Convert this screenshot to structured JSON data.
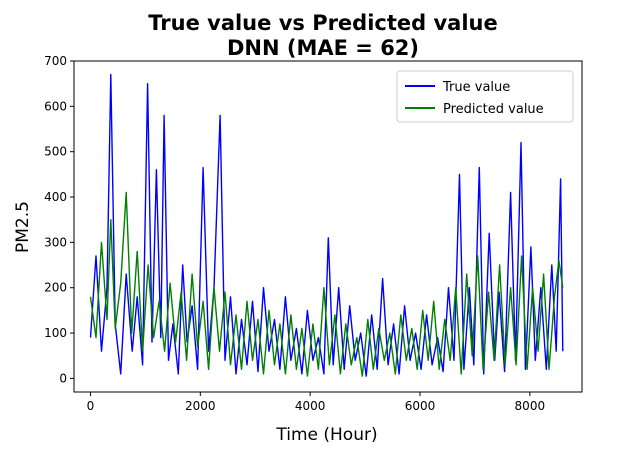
{
  "chart_data": {
    "type": "line",
    "title": "True value vs Predicted value",
    "subtitle": "DNN (MAE = 62)",
    "xlabel": "Time (Hour)",
    "ylabel": "PM2.5",
    "xlim": [
      -300,
      8950
    ],
    "ylim": [
      -30,
      700
    ],
    "x_ticks": [
      0,
      2000,
      4000,
      6000,
      8000
    ],
    "y_ticks": [
      0,
      100,
      200,
      300,
      400,
      500,
      600,
      700
    ],
    "legend_position": "top-right",
    "grid": false,
    "series": [
      {
        "name": "True value",
        "color": "#0000ff",
        "points": [
          [
            0,
            90
          ],
          [
            100,
            270
          ],
          [
            200,
            60
          ],
          [
            300,
            200
          ],
          [
            370,
            670
          ],
          [
            450,
            120
          ],
          [
            550,
            10
          ],
          [
            650,
            230
          ],
          [
            760,
            60
          ],
          [
            850,
            180
          ],
          [
            950,
            30
          ],
          [
            1040,
            650
          ],
          [
            1120,
            80
          ],
          [
            1200,
            460
          ],
          [
            1280,
            90
          ],
          [
            1340,
            580
          ],
          [
            1420,
            40
          ],
          [
            1500,
            120
          ],
          [
            1600,
            10
          ],
          [
            1680,
            250
          ],
          [
            1760,
            80
          ],
          [
            1850,
            160
          ],
          [
            1950,
            20
          ],
          [
            2050,
            465
          ],
          [
            2150,
            60
          ],
          [
            2250,
            200
          ],
          [
            2360,
            580
          ],
          [
            2450,
            40
          ],
          [
            2550,
            180
          ],
          [
            2650,
            10
          ],
          [
            2750,
            130
          ],
          [
            2850,
            30
          ],
          [
            2950,
            170
          ],
          [
            3050,
            15
          ],
          [
            3150,
            200
          ],
          [
            3250,
            60
          ],
          [
            3350,
            130
          ],
          [
            3450,
            20
          ],
          [
            3550,
            180
          ],
          [
            3650,
            40
          ],
          [
            3750,
            110
          ],
          [
            3850,
            10
          ],
          [
            3950,
            150
          ],
          [
            4050,
            40
          ],
          [
            4150,
            90
          ],
          [
            4250,
            10
          ],
          [
            4330,
            310
          ],
          [
            4420,
            30
          ],
          [
            4520,
            200
          ],
          [
            4620,
            20
          ],
          [
            4720,
            160
          ],
          [
            4820,
            40
          ],
          [
            4920,
            100
          ],
          [
            5020,
            5
          ],
          [
            5120,
            140
          ],
          [
            5220,
            20
          ],
          [
            5320,
            220
          ],
          [
            5420,
            30
          ],
          [
            5520,
            120
          ],
          [
            5620,
            10
          ],
          [
            5720,
            160
          ],
          [
            5820,
            40
          ],
          [
            5920,
            100
          ],
          [
            6020,
            20
          ],
          [
            6120,
            140
          ],
          [
            6220,
            30
          ],
          [
            6320,
            90
          ],
          [
            6420,
            15
          ],
          [
            6520,
            200
          ],
          [
            6620,
            40
          ],
          [
            6720,
            450
          ],
          [
            6800,
            20
          ],
          [
            6900,
            200
          ],
          [
            6980,
            30
          ],
          [
            7080,
            465
          ],
          [
            7160,
            10
          ],
          [
            7260,
            320
          ],
          [
            7360,
            40
          ],
          [
            7440,
            190
          ],
          [
            7540,
            15
          ],
          [
            7650,
            410
          ],
          [
            7740,
            40
          ],
          [
            7840,
            520
          ],
          [
            7920,
            20
          ],
          [
            8020,
            290
          ],
          [
            8100,
            40
          ],
          [
            8200,
            200
          ],
          [
            8300,
            20
          ],
          [
            8400,
            250
          ],
          [
            8480,
            60
          ],
          [
            8560,
            440
          ],
          [
            8600,
            60
          ]
        ]
      },
      {
        "name": "Predicted value",
        "color": "#008000",
        "points": [
          [
            0,
            180
          ],
          [
            100,
            90
          ],
          [
            200,
            300
          ],
          [
            300,
            130
          ],
          [
            370,
            350
          ],
          [
            450,
            110
          ],
          [
            550,
            210
          ],
          [
            650,
            410
          ],
          [
            750,
            100
          ],
          [
            850,
            280
          ],
          [
            950,
            60
          ],
          [
            1050,
            250
          ],
          [
            1150,
            90
          ],
          [
            1250,
            170
          ],
          [
            1350,
            60
          ],
          [
            1450,
            210
          ],
          [
            1550,
            80
          ],
          [
            1650,
            190
          ],
          [
            1750,
            40
          ],
          [
            1850,
            230
          ],
          [
            1950,
            70
          ],
          [
            2050,
            170
          ],
          [
            2150,
            20
          ],
          [
            2250,
            200
          ],
          [
            2350,
            60
          ],
          [
            2450,
            190
          ],
          [
            2550,
            30
          ],
          [
            2650,
            140
          ],
          [
            2750,
            20
          ],
          [
            2850,
            170
          ],
          [
            2950,
            40
          ],
          [
            3050,
            130
          ],
          [
            3150,
            10
          ],
          [
            3250,
            150
          ],
          [
            3350,
            30
          ],
          [
            3450,
            120
          ],
          [
            3550,
            10
          ],
          [
            3650,
            140
          ],
          [
            3750,
            20
          ],
          [
            3850,
            110
          ],
          [
            3950,
            5
          ],
          [
            4050,
            120
          ],
          [
            4150,
            20
          ],
          [
            4250,
            200
          ],
          [
            4350,
            30
          ],
          [
            4450,
            140
          ],
          [
            4550,
            10
          ],
          [
            4650,
            120
          ],
          [
            4750,
            30
          ],
          [
            4850,
            90
          ],
          [
            4950,
            5
          ],
          [
            5050,
            130
          ],
          [
            5150,
            20
          ],
          [
            5250,
            110
          ],
          [
            5350,
            40
          ],
          [
            5450,
            100
          ],
          [
            5550,
            10
          ],
          [
            5650,
            140
          ],
          [
            5750,
            40
          ],
          [
            5850,
            110
          ],
          [
            5950,
            20
          ],
          [
            6050,
            150
          ],
          [
            6150,
            40
          ],
          [
            6250,
            170
          ],
          [
            6350,
            20
          ],
          [
            6450,
            130
          ],
          [
            6550,
            40
          ],
          [
            6650,
            200
          ],
          [
            6750,
            10
          ],
          [
            6850,
            230
          ],
          [
            6950,
            50
          ],
          [
            7050,
            270
          ],
          [
            7150,
            20
          ],
          [
            7250,
            190
          ],
          [
            7350,
            40
          ],
          [
            7450,
            250
          ],
          [
            7550,
            30
          ],
          [
            7650,
            200
          ],
          [
            7750,
            30
          ],
          [
            7850,
            270
          ],
          [
            7950,
            20
          ],
          [
            8050,
            200
          ],
          [
            8150,
            60
          ],
          [
            8250,
            230
          ],
          [
            8350,
            20
          ],
          [
            8450,
            180
          ],
          [
            8530,
            260
          ],
          [
            8600,
            200
          ]
        ]
      }
    ]
  }
}
